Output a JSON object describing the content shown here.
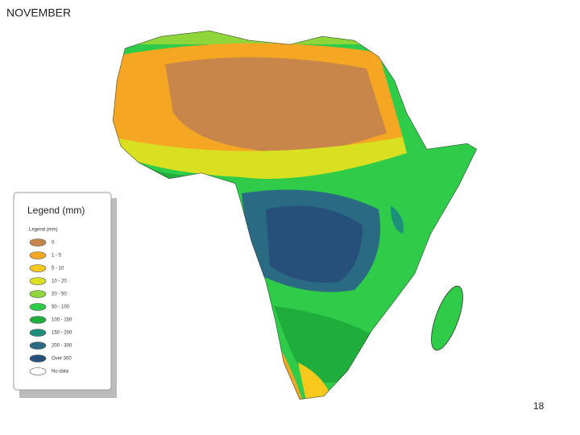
{
  "header": {
    "title": "NOVEMBER"
  },
  "legend": {
    "title": "Legend (mm)",
    "subtitle": "Legend (mm)",
    "items": [
      {
        "label": "0",
        "color": "#c8864a"
      },
      {
        "label": "1 - 5",
        "color": "#f5a623"
      },
      {
        "label": "5 - 10",
        "color": "#f7c91c"
      },
      {
        "label": "10 - 20",
        "color": "#d9e021"
      },
      {
        "label": "20 - 50",
        "color": "#8ed63a"
      },
      {
        "label": "50 - 100",
        "color": "#2fcc4a"
      },
      {
        "label": "100 - 150",
        "color": "#1fae3c"
      },
      {
        "label": "150 - 200",
        "color": "#1d8f7a"
      },
      {
        "label": "200 - 300",
        "color": "#2a6a82"
      },
      {
        "label": "Over 300",
        "color": "#26507a"
      },
      {
        "label": "No data",
        "color": "#ffffff"
      }
    ]
  },
  "footer": {
    "page_number": "18"
  }
}
